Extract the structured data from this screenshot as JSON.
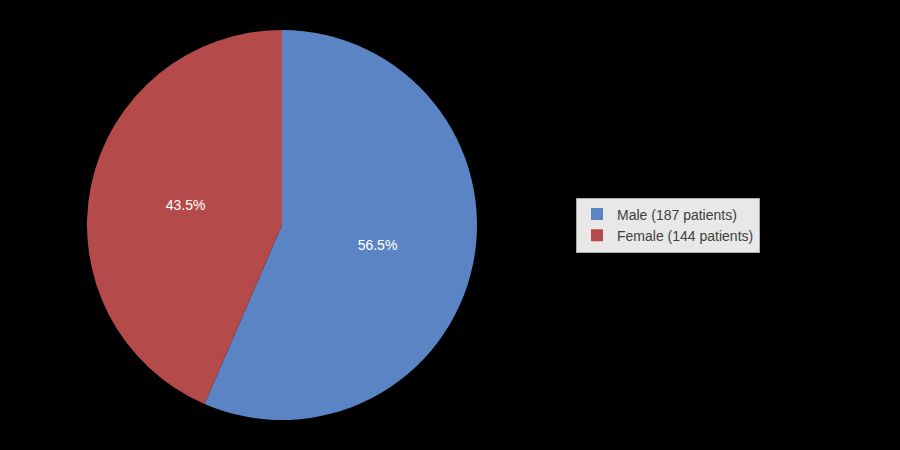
{
  "chart_data": {
    "type": "pie",
    "categories": [
      "Male (187 patients)",
      "Female (144 patients)"
    ],
    "values": [
      56.5,
      43.5
    ],
    "value_labels": [
      "56.5%",
      "43.5%"
    ],
    "colors": [
      "#5B84C4",
      "#B54A4A"
    ],
    "data_labels": true,
    "legend": "right"
  }
}
